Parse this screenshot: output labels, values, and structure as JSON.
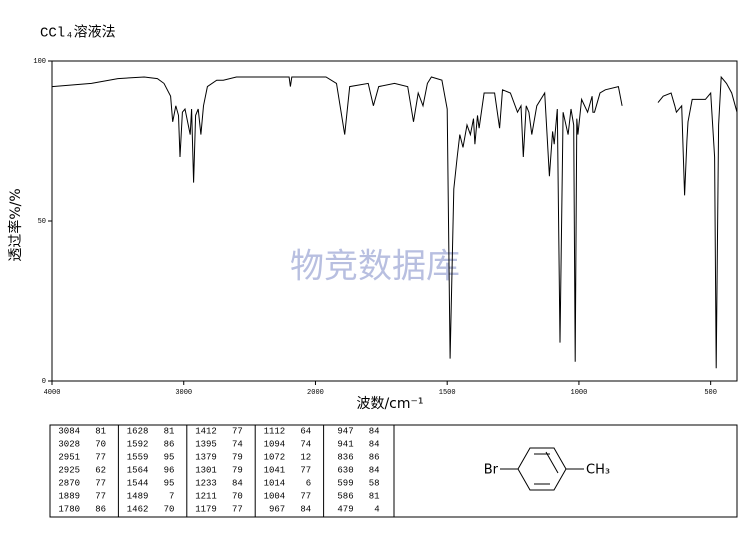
{
  "chart_data": {
    "type": "line",
    "title": "CCl₄溶液法",
    "xlabel": "波数/cm⁻¹",
    "ylabel": "透过率%/%",
    "watermark": "物竞数据库",
    "xlim": [
      4000,
      400
    ],
    "xticks": [
      4000,
      3000,
      2000,
      1500,
      1000,
      500
    ],
    "x_break": 2000,
    "x_compress_above_break": 2,
    "ylim": [
      0,
      100
    ],
    "yticks": [
      0,
      50,
      100
    ],
    "grid": false,
    "color": "#000000",
    "x": [
      4000,
      3700,
      3500,
      3300,
      3200,
      3150,
      3100,
      3084,
      3060,
      3040,
      3028,
      3010,
      2990,
      2951,
      2940,
      2925,
      2910,
      2890,
      2870,
      2850,
      2820,
      2750,
      2700,
      2600,
      2500,
      2200,
      2190,
      2180,
      2000,
      1960,
      1920,
      1889,
      1870,
      1800,
      1780,
      1760,
      1700,
      1650,
      1628,
      1610,
      1592,
      1575,
      1560,
      1520,
      1500,
      1489,
      1475,
      1462,
      1452,
      1440,
      1425,
      1412,
      1400,
      1395,
      1385,
      1379,
      1360,
      1320,
      1301,
      1290,
      1260,
      1233,
      1220,
      1211,
      1200,
      1190,
      1179,
      1160,
      1130,
      1112,
      1100,
      1094,
      1082,
      1072,
      1060,
      1041,
      1030,
      1020,
      1014,
      1008,
      1004,
      990,
      967,
      950,
      947,
      941,
      920,
      900,
      850,
      836,
      830,
      700,
      680,
      650,
      636,
      630,
      610,
      599,
      590,
      586,
      570,
      520,
      500,
      485,
      479,
      470,
      460,
      440,
      420,
      400
    ],
    "values": [
      92,
      93,
      94.5,
      95,
      94.5,
      93,
      89,
      81,
      86,
      83,
      70,
      84,
      85,
      77,
      85,
      62,
      83,
      85,
      77,
      86,
      92,
      94,
      94,
      95,
      95,
      95,
      92,
      95,
      95,
      95,
      93,
      77,
      92,
      93,
      86,
      92,
      93,
      92,
      81,
      90,
      86,
      93,
      95,
      94,
      85,
      7,
      60,
      70,
      77,
      73,
      80,
      77,
      82,
      74,
      83,
      79,
      90,
      90,
      79,
      91,
      90,
      84,
      86,
      70,
      86,
      84,
      77,
      86,
      90,
      64,
      78,
      74,
      85,
      12,
      84,
      77,
      85,
      80,
      6,
      82,
      77,
      88,
      84,
      89,
      84,
      84,
      90,
      91,
      92,
      86,
      null,
      87,
      89,
      90,
      86,
      84,
      86,
      58,
      75,
      81,
      88,
      88,
      90,
      70,
      4,
      80,
      95,
      93,
      90,
      84
    ]
  },
  "table": {
    "columns": [
      [
        [
          3084,
          81
        ],
        [
          3028,
          70
        ],
        [
          2951,
          77
        ],
        [
          2925,
          62
        ],
        [
          2870,
          77
        ],
        [
          1889,
          77
        ],
        [
          1780,
          86
        ]
      ],
      [
        [
          1628,
          81
        ],
        [
          1592,
          86
        ],
        [
          1559,
          95
        ],
        [
          1564,
          96
        ],
        [
          1544,
          95
        ],
        [
          1489,
          7
        ],
        [
          1462,
          70
        ]
      ],
      [
        [
          1412,
          77
        ],
        [
          1395,
          74
        ],
        [
          1379,
          79
        ],
        [
          1301,
          79
        ],
        [
          1233,
          84
        ],
        [
          1211,
          70
        ],
        [
          1179,
          77
        ]
      ],
      [
        [
          1112,
          64
        ],
        [
          1094,
          74
        ],
        [
          1072,
          12
        ],
        [
          1041,
          77
        ],
        [
          1014,
          6
        ],
        [
          1004,
          77
        ],
        [
          967,
          84
        ]
      ],
      [
        [
          947,
          84
        ],
        [
          941,
          84
        ],
        [
          836,
          86
        ],
        [
          630,
          84
        ],
        [
          599,
          58
        ],
        [
          586,
          81
        ],
        [
          479,
          4
        ]
      ]
    ]
  },
  "structure": {
    "left": "Br",
    "right": "CH₃"
  }
}
